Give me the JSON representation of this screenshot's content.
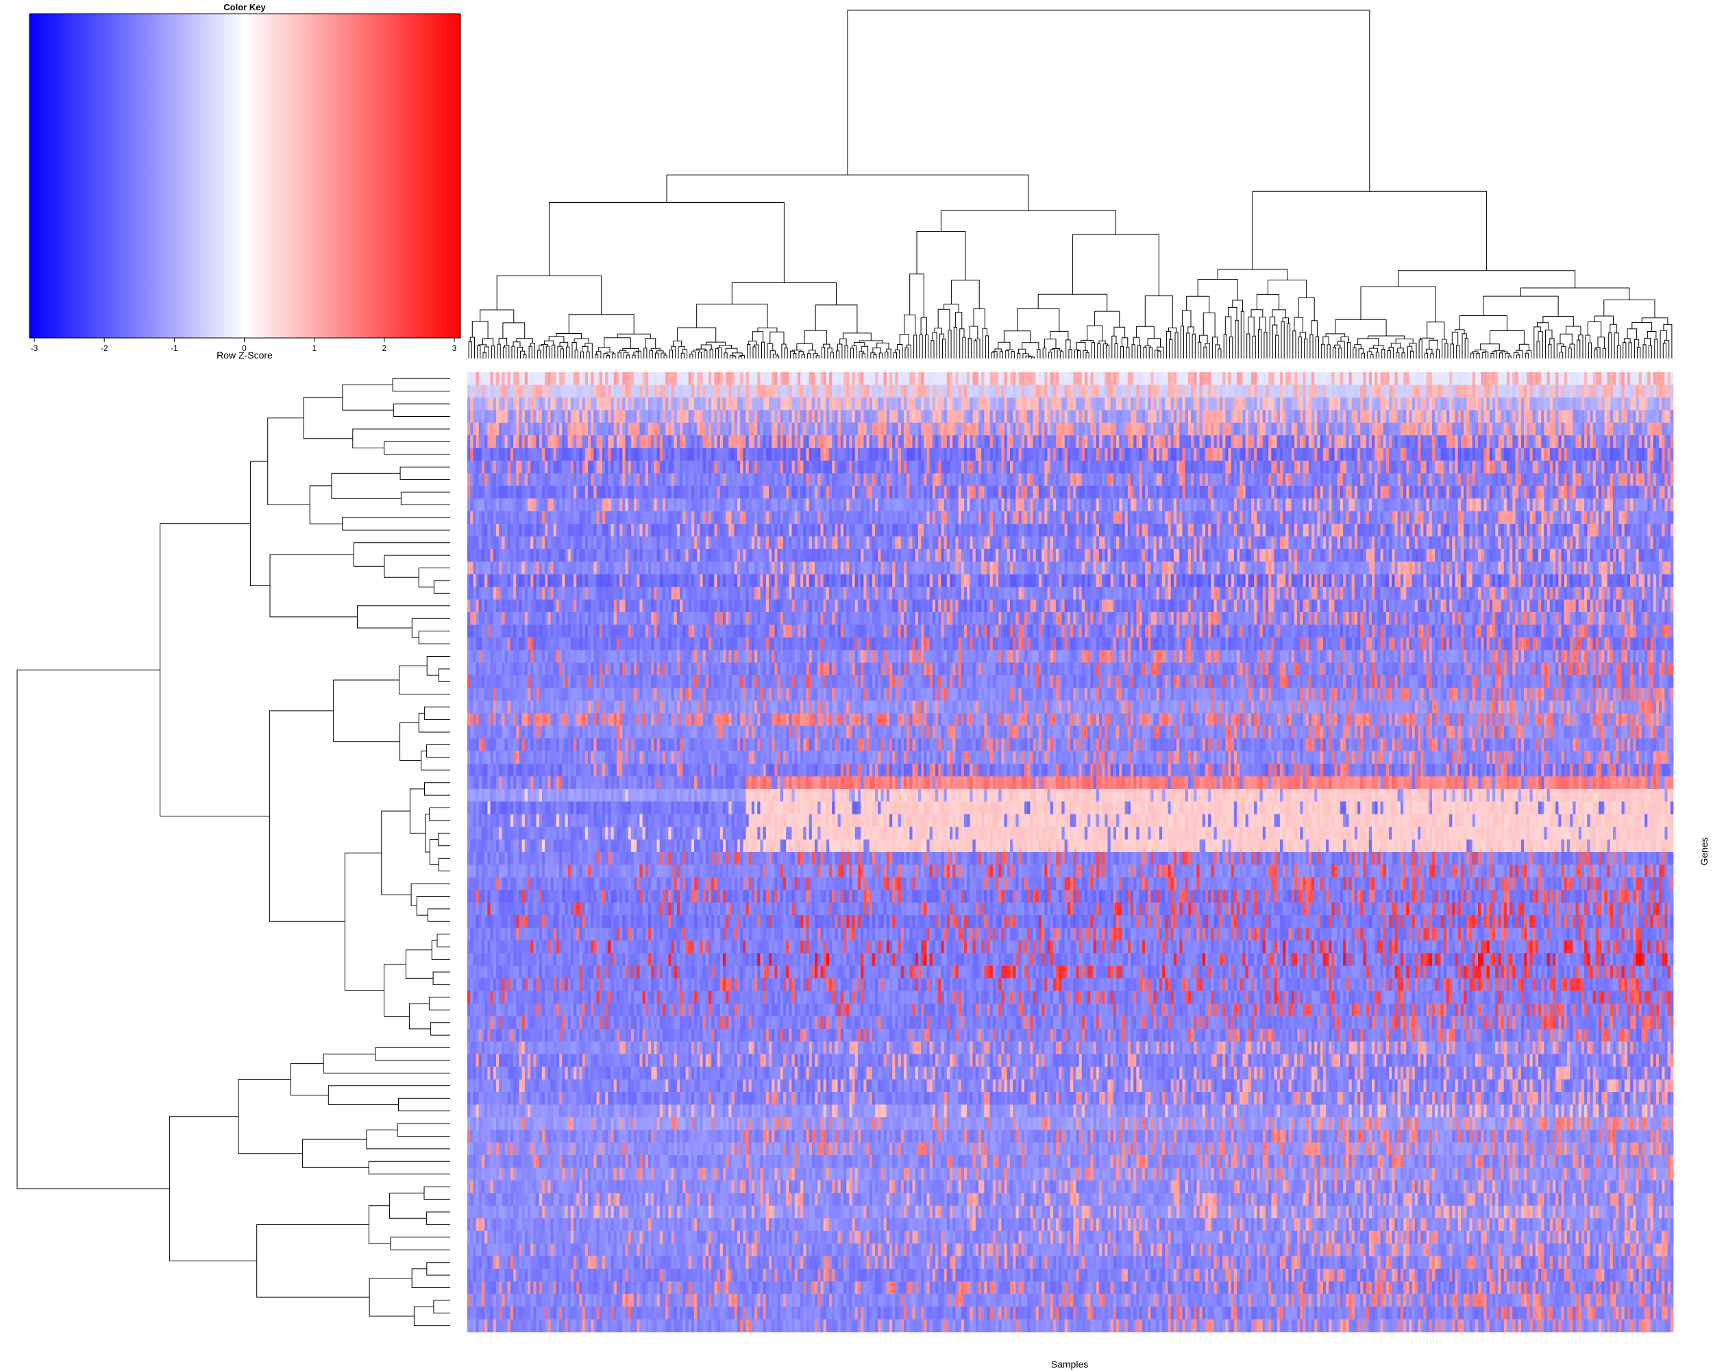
{
  "chart_data": {
    "type": "heatmap",
    "title": "",
    "xlabel": "Samples",
    "ylabel": "Genes",
    "color_key": {
      "title": "Color Key",
      "xlabel": "Row Z-Score",
      "ticks": [
        "-3",
        "-2",
        "-1",
        "0",
        "1",
        "2",
        "3"
      ],
      "range": [
        -3,
        3
      ],
      "colors": {
        "low": "#0000ff",
        "mid": "#ffffff",
        "high": "#ff0000"
      }
    },
    "n_rows": 76,
    "n_cols": 420,
    "row_dendrogram": true,
    "column_dendrogram": true,
    "row_labels_shown": false,
    "column_labels_shown": false,
    "row_baselines": [
      -0.3,
      -0.6,
      -1.0,
      -1.2,
      -1.3,
      -1.6,
      -1.7,
      -1.6,
      -1.5,
      -1.6,
      -1.4,
      -1.5,
      -1.6,
      -1.5,
      -1.6,
      -1.4,
      -1.7,
      -1.5,
      -1.6,
      -1.5,
      -1.6,
      -1.6,
      -1.4,
      -1.5,
      -1.5,
      -1.4,
      -1.3,
      -1.4,
      -1.4,
      -1.5,
      -1.4,
      -1.6,
      -1.5,
      -1.2,
      -1.6,
      -1.5,
      -1.5,
      -1.5,
      -1.5,
      -1.4,
      -1.5,
      -1.6,
      -1.5,
      -1.6,
      -1.5,
      -1.5,
      -1.5,
      -1.5,
      -1.5,
      -1.5,
      -1.5,
      -1.5,
      -1.5,
      -1.4,
      -1.5,
      -1.5,
      -1.5,
      -1.5,
      -1.3,
      -1.2,
      -1.4,
      -1.3,
      -1.4,
      -1.3,
      -1.4,
      -1.4,
      -1.3,
      -1.4,
      -1.4,
      -1.4,
      -1.5,
      -1.5,
      -1.5,
      -1.4,
      -1.5,
      -1.4
    ],
    "row_high_values": [
      1.0,
      0.9,
      0.8,
      0.9,
      1.1,
      1.2,
      1.3,
      1.3,
      1.3,
      1.3,
      1.0,
      1.2,
      1.1,
      1.1,
      1.1,
      1.1,
      1.1,
      1.2,
      1.2,
      1.3,
      1.5,
      1.6,
      1.4,
      1.6,
      1.7,
      1.5,
      1.4,
      1.5,
      1.5,
      1.5,
      1.4,
      1.5,
      1.5,
      0.6,
      0.6,
      0.6,
      0.6,
      0.6,
      1.9,
      2.0,
      2.0,
      1.9,
      2.1,
      2.1,
      1.9,
      2.3,
      2.4,
      2.2,
      2.0,
      2.1,
      1.9,
      1.8,
      1.6,
      1.1,
      1.1,
      1.0,
      1.0,
      1.2,
      0.8,
      1.4,
      1.5,
      1.4,
      1.4,
      1.3,
      1.1,
      1.1,
      1.0,
      1.1,
      1.2,
      1.2,
      1.3,
      1.3,
      1.4,
      1.4,
      1.5,
      1.3
    ]
  }
}
